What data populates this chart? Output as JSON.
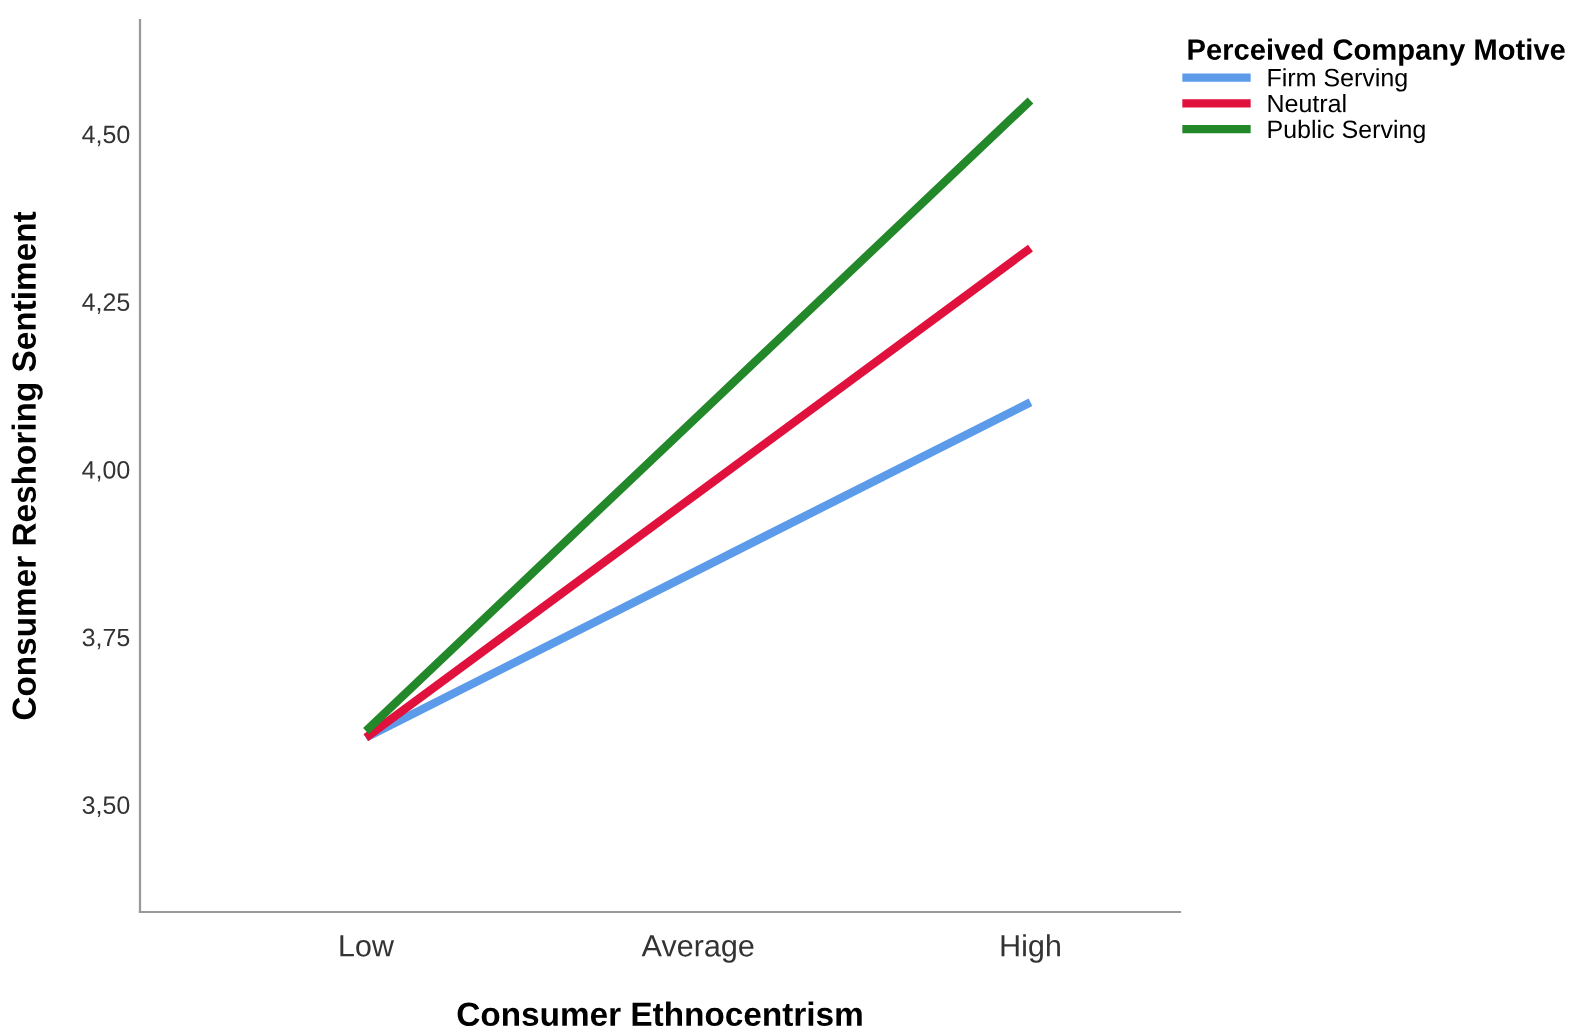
{
  "chart_data": {
    "type": "line",
    "xlabel": "Consumer Ethnocentrism",
    "ylabel": "Consumer Reshoring Sentiment",
    "legend_title": "Perceived Company Motive",
    "categories": [
      "Low",
      "Average",
      "High"
    ],
    "series": [
      {
        "name": "Firm Serving",
        "color": "#5b9bea",
        "values": [
          3.6,
          3.85,
          4.1
        ]
      },
      {
        "name": "Neutral",
        "color": "#e0113c",
        "values": [
          3.6,
          3.965,
          4.33
        ]
      },
      {
        "name": "Public Serving",
        "color": "#23882a",
        "values": [
          3.61,
          4.08,
          4.55
        ]
      }
    ],
    "ylim": [
      3.34,
      4.67
    ],
    "yticks": [
      {
        "value": 3.5,
        "label": "3,50"
      },
      {
        "value": 3.75,
        "label": "3,75"
      },
      {
        "value": 4.0,
        "label": "4,00"
      },
      {
        "value": 4.25,
        "label": "4,25"
      },
      {
        "value": 4.5,
        "label": "4,50"
      }
    ],
    "grid": false,
    "legend": "top right",
    "marker": "none",
    "line_style": "solid"
  }
}
